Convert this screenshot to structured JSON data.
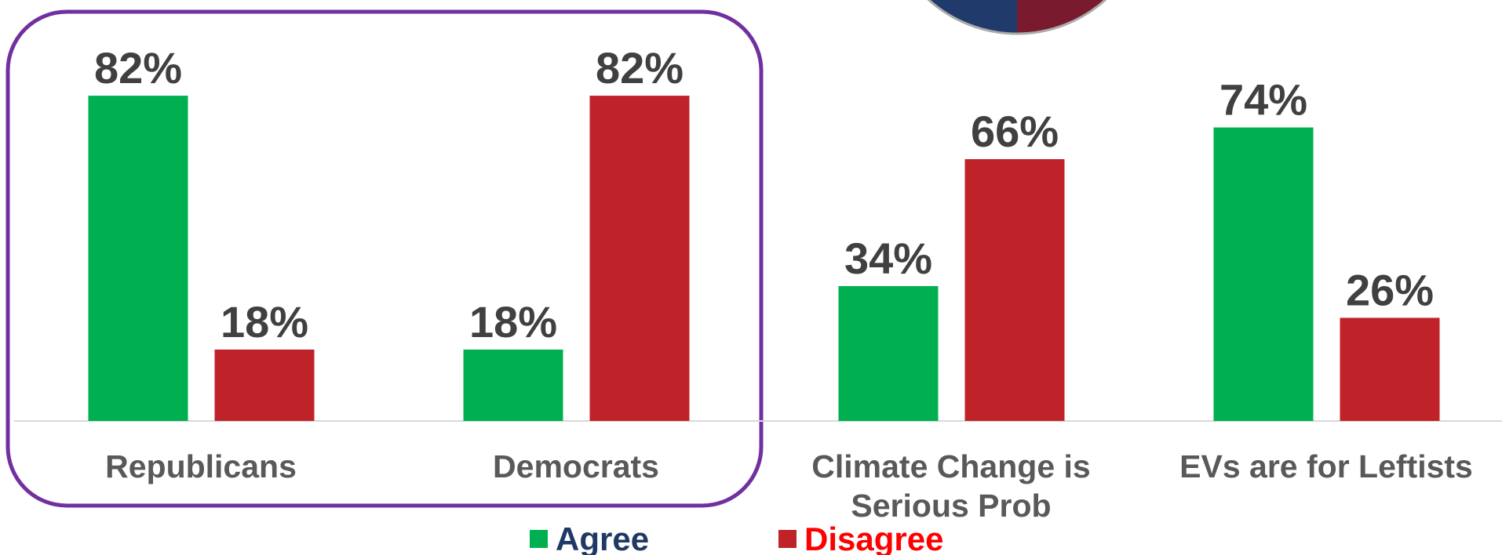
{
  "chart_data": {
    "type": "bar",
    "categories": [
      "Republicans",
      "Democrats",
      "Climate Change is Serious Prob",
      "EVs are for Leftists"
    ],
    "series": [
      {
        "name": "Agree",
        "color": "#00b050",
        "values": [
          82,
          18,
          34,
          74
        ],
        "value_labels": [
          "82%",
          "18%",
          "34%",
          "74%"
        ]
      },
      {
        "name": "Disagree",
        "color": "#c0222a",
        "values": [
          18,
          82,
          66,
          26
        ],
        "value_labels": [
          "18%",
          "82%",
          "66%",
          "26%"
        ]
      }
    ],
    "legend_colors": [
      "#1f3864",
      "#ff0000"
    ]
  }
}
